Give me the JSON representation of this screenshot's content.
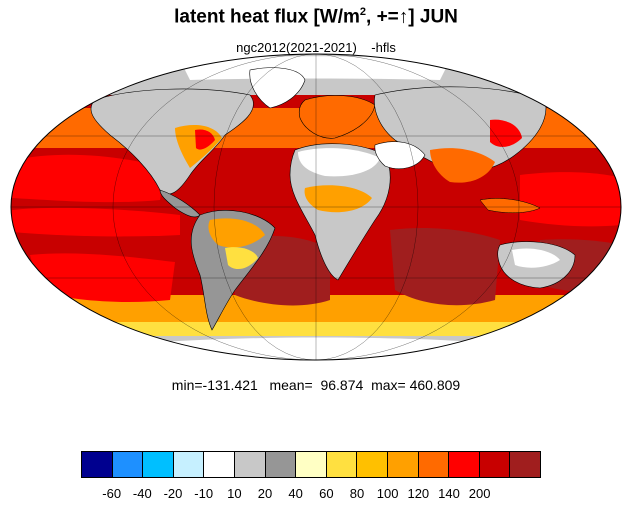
{
  "title": {
    "main": "latent heat flux [W/m",
    "sup": "2",
    "rest": ", +=↑]  JUN"
  },
  "subtitle": {
    "run": "ngc2012(2021-2021)",
    "variable": "-hfls"
  },
  "stats": {
    "min": "min=-131.421",
    "mean": "mean=  96.874",
    "max": "max= 460.809"
  },
  "colorbar": {
    "colors": [
      "#00008f",
      "#1e90ff",
      "#00bfff",
      "#c6f0ff",
      "#ffffff",
      "#c8c8c8",
      "#969696",
      "#ffffc4",
      "#ffe040",
      "#ffc000",
      "#ffa000",
      "#ff6a00",
      "#ff0000",
      "#c80000",
      "#a01e1e"
    ],
    "labels": [
      "-60",
      "-40",
      "-20",
      "-10",
      "10",
      "20",
      "40",
      "60",
      "80",
      "100",
      "120",
      "140",
      "200"
    ]
  },
  "map_colors": {
    "ocean_deep": "#c80000",
    "ocean_mid": "#ff0000",
    "ocean_high": "#a01e1e",
    "orange": "#ffa000",
    "yellow": "#ffe040",
    "land_light": "#c8c8c8",
    "land_dark": "#969696",
    "land_white": "#ffffff",
    "coast": "#000000"
  }
}
